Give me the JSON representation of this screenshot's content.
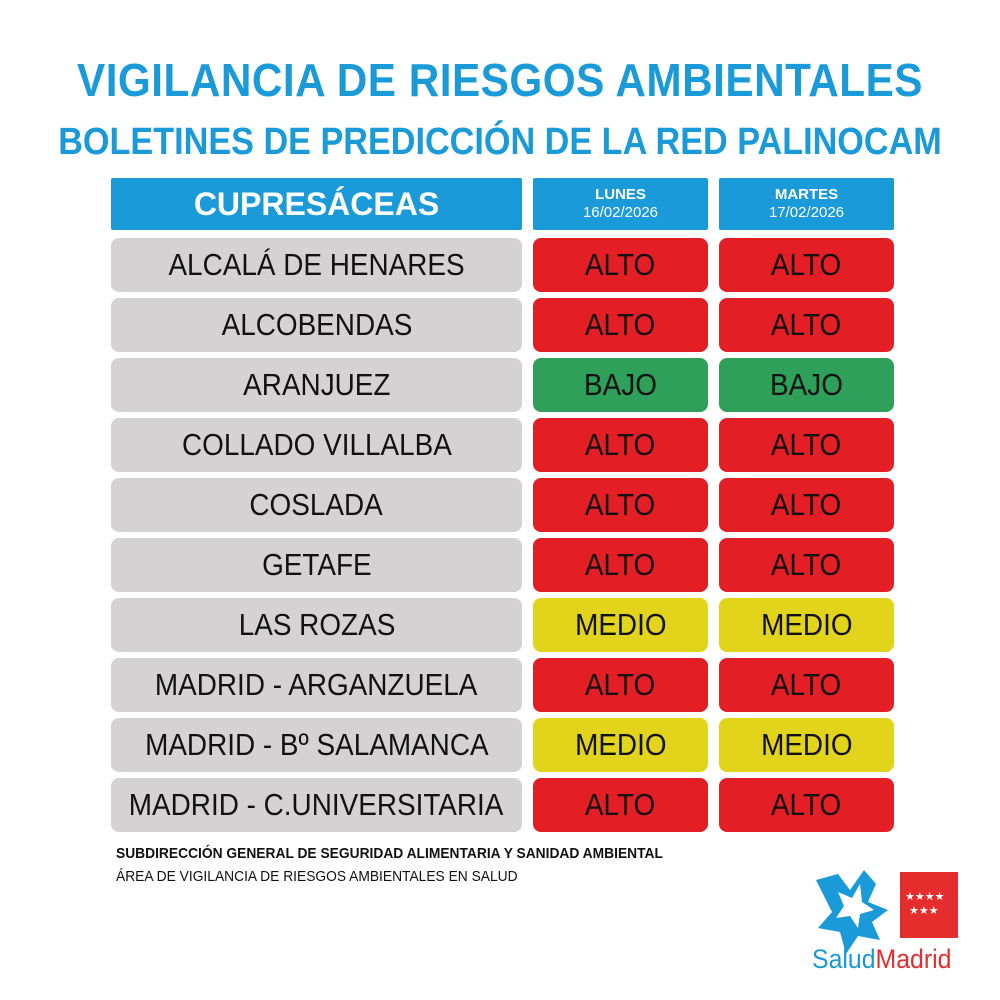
{
  "header": {
    "title": "VIGILANCIA DE RIESGOS AMBIENTALES",
    "subtitle": "BOLETINES DE PREDICCIÓN DE LA RED PALINOCAM"
  },
  "table": {
    "category_label": "CUPRESÁCEAS",
    "days": [
      {
        "name": "LUNES",
        "date": "16/02/2026"
      },
      {
        "name": "MARTES",
        "date": "17/02/2026"
      }
    ],
    "rows": [
      {
        "city": "ALCALÁ DE HENARES",
        "day1": "ALTO",
        "day2": "ALTO"
      },
      {
        "city": "ALCOBENDAS",
        "day1": "ALTO",
        "day2": "ALTO"
      },
      {
        "city": "ARANJUEZ",
        "day1": "BAJO",
        "day2": "BAJO"
      },
      {
        "city": "COLLADO VILLALBA",
        "day1": "ALTO",
        "day2": "ALTO"
      },
      {
        "city": "COSLADA",
        "day1": "ALTO",
        "day2": "ALTO"
      },
      {
        "city": "GETAFE",
        "day1": "ALTO",
        "day2": "ALTO"
      },
      {
        "city": "LAS ROZAS",
        "day1": "MEDIO",
        "day2": "MEDIO"
      },
      {
        "city": "MADRID - ARGANZUELA",
        "day1": "ALTO",
        "day2": "ALTO"
      },
      {
        "city": "MADRID - Bº SALAMANCA",
        "day1": "MEDIO",
        "day2": "MEDIO"
      },
      {
        "city": "MADRID - C.UNIVERSITARIA",
        "day1": "ALTO",
        "day2": "ALTO"
      }
    ]
  },
  "level_colors": {
    "ALTO": "#e31e24",
    "MEDIO": "#e2d41b",
    "BAJO": "#2ea05a"
  },
  "footer": {
    "line1": "SUBDIRECCIÓN GENERAL DE SEGURIDAD ALIMENTARIA Y SANIDAD AMBIENTAL",
    "line2": "ÁREA DE VIGILANCIA DE RIESGOS AMBIENTALES EN SALUD"
  },
  "logo": {
    "text_part1": "Salud",
    "text_part2": "Madrid",
    "icon": "salud-madrid-star-logo",
    "colors": {
      "blue": "#1a9ad9",
      "red": "#e52d2d"
    }
  }
}
